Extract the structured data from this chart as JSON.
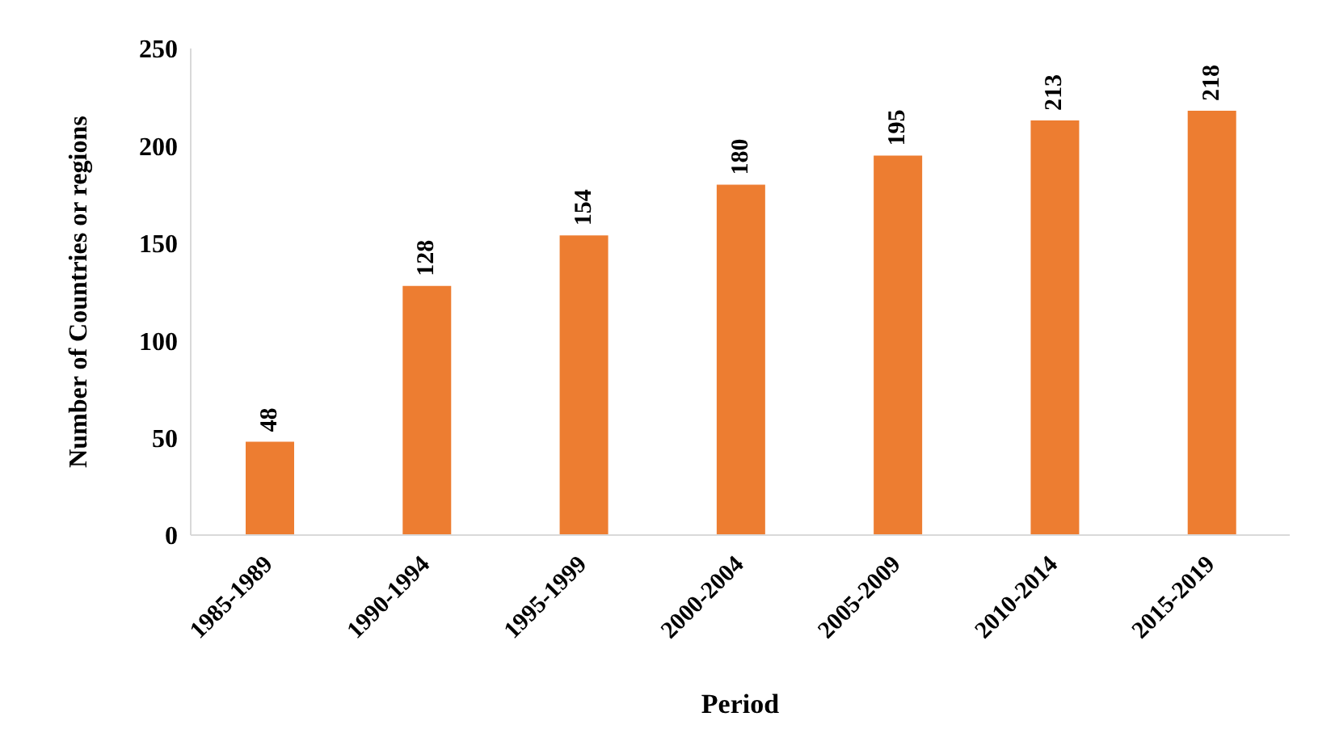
{
  "chart_data": {
    "type": "bar",
    "xlabel": "Period",
    "ylabel": "Number of  Countries or regions",
    "categories": [
      "1985-1989",
      "1990-1994",
      "1995-1999",
      "2000-2004",
      "2005-2009",
      "2010-2014",
      "2015-2019"
    ],
    "values": [
      48,
      128,
      154,
      180,
      195,
      213,
      218
    ],
    "color": "#ed7d31",
    "ylim": [
      0,
      250
    ],
    "yticks": [
      0,
      50,
      100,
      150,
      200,
      250
    ],
    "grid": false,
    "data_labels": true
  }
}
